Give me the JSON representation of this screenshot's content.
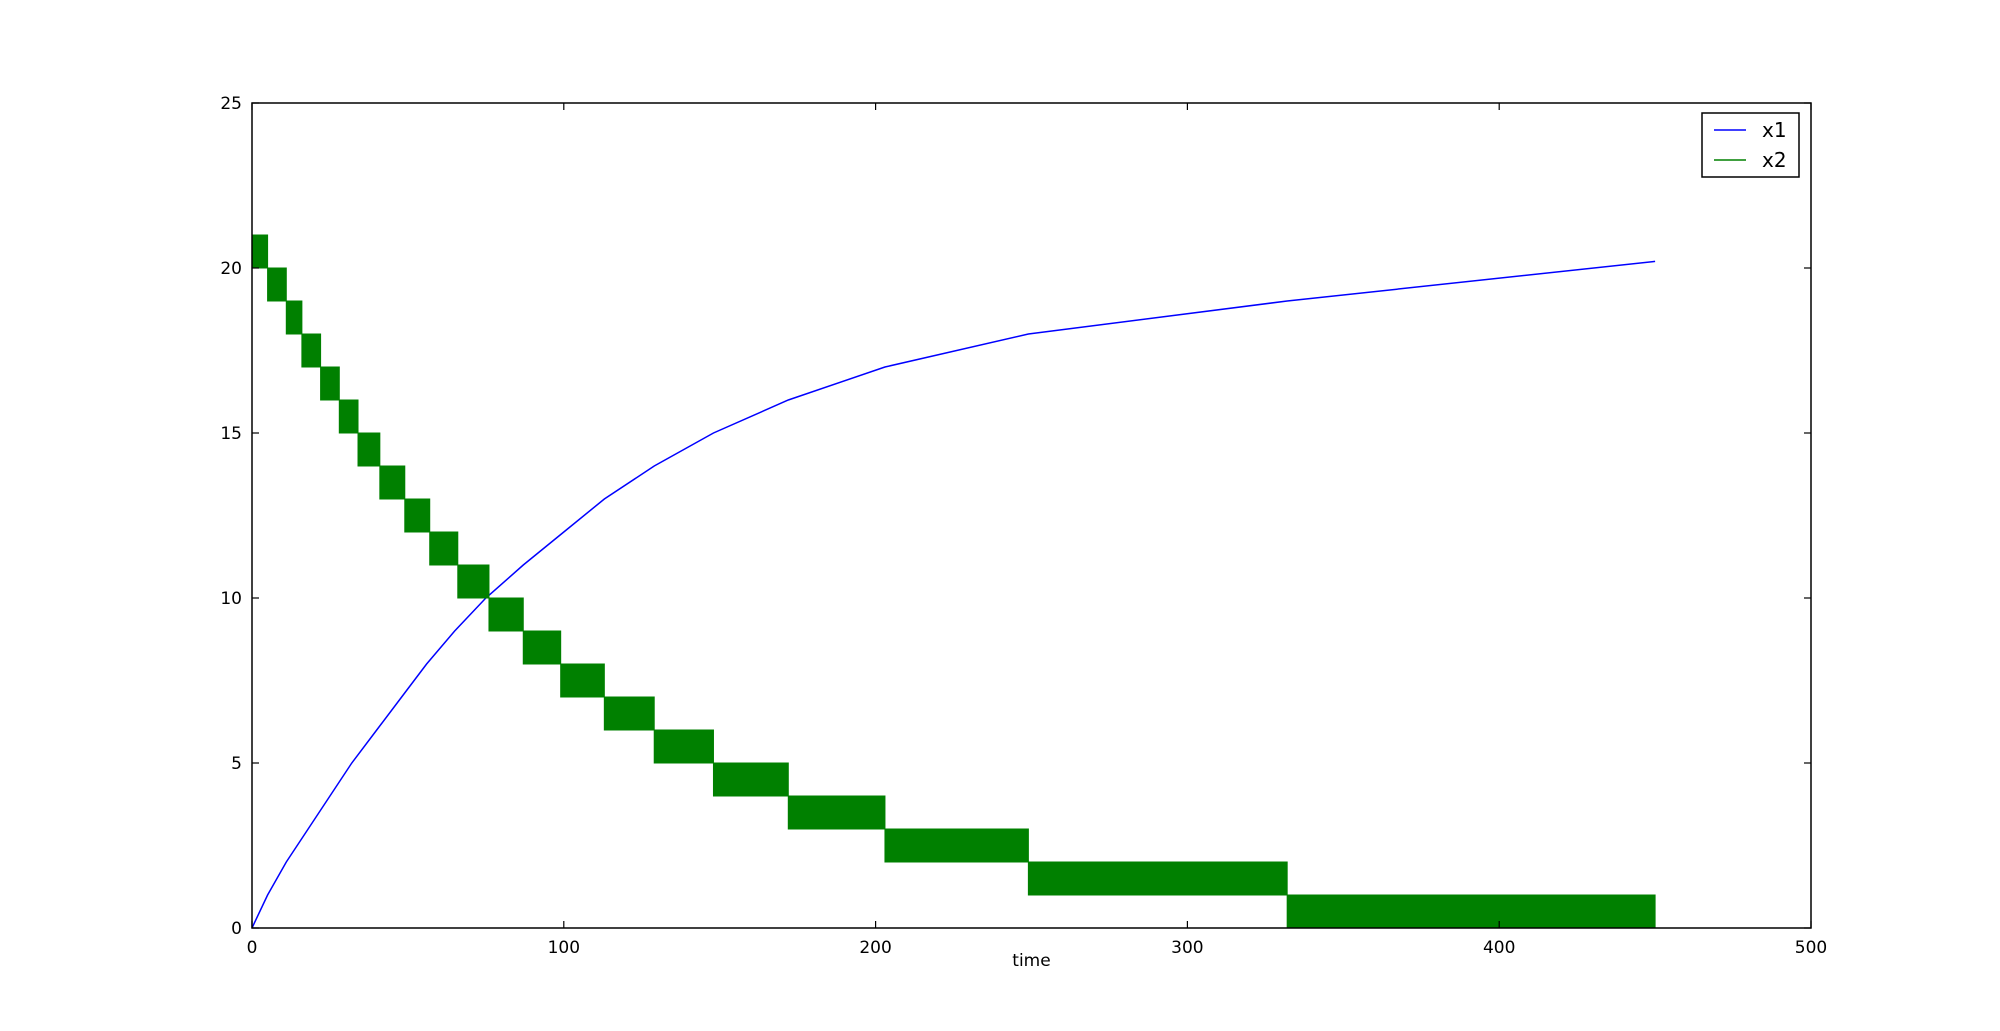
{
  "chart_data": {
    "type": "line",
    "title": "",
    "xlabel": "time",
    "ylabel": "",
    "xlim": [
      0,
      500
    ],
    "ylim": [
      0,
      25
    ],
    "xticks": [
      0,
      100,
      200,
      300,
      400,
      500
    ],
    "yticks": [
      0,
      5,
      10,
      15,
      20,
      25
    ],
    "grid": false,
    "legend_position": "top-right",
    "series": [
      {
        "name": "x1",
        "color": "#0000ff",
        "style": "line",
        "x": [
          0,
          5,
          11,
          18,
          25,
          32,
          40,
          48,
          56,
          65,
          75,
          87,
          100,
          113,
          129,
          148,
          172,
          203,
          249,
          332,
          450
        ],
        "y": [
          0,
          1,
          2,
          3,
          4,
          5,
          6,
          7,
          8,
          9,
          10,
          11,
          12,
          13,
          14,
          15,
          16,
          17,
          18,
          19,
          20.2
        ]
      },
      {
        "name": "x2",
        "color": "#008000",
        "style": "step-band",
        "x": [
          0,
          5,
          11,
          16,
          22,
          28,
          34,
          41,
          49,
          57,
          66,
          76,
          87,
          99,
          113,
          129,
          148,
          172,
          203,
          249,
          332,
          450
        ],
        "y": [
          21,
          20,
          19,
          18,
          17,
          16,
          15,
          14,
          13,
          12,
          11,
          10,
          9,
          8,
          7,
          6,
          5,
          4,
          3,
          2,
          1,
          0
        ]
      }
    ]
  }
}
